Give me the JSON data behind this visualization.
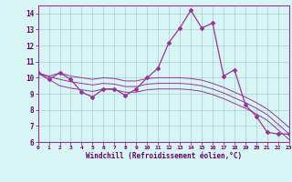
{
  "xlabel": "Windchill (Refroidissement éolien,°C)",
  "x": [
    0,
    1,
    2,
    3,
    4,
    5,
    6,
    7,
    8,
    9,
    10,
    11,
    12,
    13,
    14,
    15,
    16,
    17,
    18,
    19,
    20,
    21,
    22,
    23
  ],
  "y_main": [
    10.3,
    9.9,
    10.3,
    9.9,
    9.1,
    8.8,
    9.3,
    9.3,
    8.9,
    9.3,
    10.0,
    10.6,
    12.2,
    13.1,
    14.2,
    13.1,
    13.4,
    10.1,
    10.5,
    8.3,
    7.6,
    6.6,
    6.5,
    6.5
  ],
  "y_trend1": [
    10.3,
    10.05,
    9.9,
    9.75,
    9.65,
    9.55,
    9.65,
    9.6,
    9.45,
    9.45,
    9.6,
    9.65,
    9.65,
    9.65,
    9.6,
    9.5,
    9.3,
    9.05,
    8.75,
    8.45,
    8.1,
    7.7,
    7.1,
    6.5
  ],
  "y_upper": [
    10.3,
    10.1,
    10.3,
    10.1,
    10.0,
    9.9,
    10.0,
    9.95,
    9.8,
    9.8,
    9.95,
    10.0,
    10.0,
    10.0,
    9.95,
    9.85,
    9.65,
    9.4,
    9.1,
    8.8,
    8.45,
    8.05,
    7.5,
    6.9
  ],
  "y_lower": [
    10.3,
    9.9,
    9.5,
    9.35,
    9.25,
    9.15,
    9.3,
    9.25,
    9.1,
    9.1,
    9.25,
    9.3,
    9.3,
    9.3,
    9.25,
    9.15,
    8.95,
    8.7,
    8.4,
    8.1,
    7.75,
    7.35,
    6.75,
    6.15
  ],
  "line_color": "#993399",
  "bg_color": "#d8f5f5",
  "grid_color": "#aacccc",
  "xlim": [
    0,
    23
  ],
  "ylim": [
    6,
    14.5
  ],
  "yticks": [
    6,
    7,
    8,
    9,
    10,
    11,
    12,
    13,
    14
  ],
  "xticks": [
    0,
    1,
    2,
    3,
    4,
    5,
    6,
    7,
    8,
    9,
    10,
    11,
    12,
    13,
    14,
    15,
    16,
    17,
    18,
    19,
    20,
    21,
    22,
    23
  ]
}
